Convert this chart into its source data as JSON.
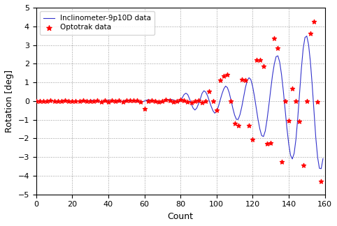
{
  "title": "",
  "xlabel": "Count",
  "ylabel": "Rotation [deg]",
  "xlim": [
    0,
    160
  ],
  "ylim": [
    -5,
    5
  ],
  "xticks": [
    0,
    20,
    40,
    60,
    80,
    100,
    120,
    140,
    160
  ],
  "yticks": [
    -5,
    -4,
    -3,
    -2,
    -1,
    0,
    1,
    2,
    3,
    4,
    5
  ],
  "line_color": "#3333cc",
  "dot_color": "#ff0000",
  "bg_color": "#ffffff",
  "legend_line_label": "Inclinometer-9p10D data",
  "legend_dot_label": "Optotrak data",
  "inclinometer_x": [
    0,
    1,
    2,
    3,
    4,
    5,
    6,
    7,
    8,
    9,
    10,
    11,
    12,
    13,
    14,
    15,
    16,
    17,
    18,
    19,
    20,
    21,
    22,
    23,
    24,
    25,
    26,
    27,
    28,
    29,
    30,
    31,
    32,
    33,
    34,
    35,
    36,
    37,
    38,
    39,
    40,
    41,
    42,
    43,
    44,
    45,
    46,
    47,
    48,
    49,
    50,
    51,
    52,
    53,
    54,
    55,
    56,
    57,
    58,
    59,
    60,
    61,
    62,
    63,
    64,
    65,
    66,
    67,
    68,
    69,
    70,
    71,
    72,
    73,
    74,
    75,
    76,
    77,
    78,
    79,
    80,
    81,
    82,
    83,
    84,
    85,
    86,
    87,
    88,
    89,
    90,
    91,
    92,
    93,
    94,
    95,
    96,
    97,
    98,
    99,
    100,
    101,
    102,
    103,
    104,
    105,
    106,
    107,
    108,
    109,
    110,
    111,
    112,
    113,
    114,
    115,
    116,
    117,
    118,
    119,
    120,
    121,
    122,
    123,
    124,
    125,
    126,
    127,
    128,
    129,
    130,
    131,
    132,
    133,
    134,
    135,
    136,
    137,
    138,
    139,
    140,
    141,
    142,
    143,
    144,
    145,
    146,
    147,
    148,
    149,
    150,
    151,
    152,
    153,
    154,
    155,
    156,
    157,
    158,
    159
  ],
  "inclinometer_y": [
    0.0,
    0.02,
    0.03,
    0.01,
    -0.02,
    -0.03,
    -0.01,
    0.02,
    0.03,
    0.01,
    -0.02,
    -0.04,
    -0.03,
    -0.01,
    0.02,
    0.03,
    0.02,
    0.01,
    -0.01,
    -0.02,
    -0.01,
    0.01,
    0.02,
    0.01,
    0.0,
    -0.01,
    -0.02,
    -0.01,
    0.01,
    0.02,
    0.03,
    0.04,
    0.02,
    0.0,
    -0.03,
    -0.05,
    -0.04,
    -0.02,
    0.01,
    0.03,
    0.05,
    0.06,
    0.04,
    0.02,
    -0.01,
    -0.03,
    -0.04,
    -0.03,
    -0.01,
    0.01,
    0.03,
    0.05,
    0.06,
    0.05,
    0.03,
    0.0,
    -0.04,
    -0.07,
    -0.06,
    -0.04,
    0.0,
    0.04,
    0.07,
    0.06,
    0.04,
    0.01,
    -0.02,
    -0.05,
    -0.08,
    -0.07,
    -0.05,
    -0.02,
    0.02,
    0.06,
    0.09,
    0.08,
    0.06,
    0.03,
    -0.01,
    -0.05,
    0.0,
    0.18,
    0.35,
    0.42,
    0.35,
    0.12,
    -0.15,
    -0.38,
    -0.48,
    -0.38,
    -0.15,
    0.12,
    0.42,
    0.55,
    0.48,
    0.28,
    0.0,
    -0.28,
    -0.52,
    -0.65,
    -0.55,
    -0.3,
    0.05,
    0.38,
    0.65,
    0.8,
    0.72,
    0.45,
    0.05,
    -0.38,
    -0.75,
    -0.98,
    -0.98,
    -0.72,
    -0.3,
    0.22,
    0.72,
    1.1,
    1.25,
    1.15,
    0.78,
    0.25,
    -0.38,
    -1.0,
    -1.5,
    -1.85,
    -1.9,
    -1.6,
    -0.98,
    -0.22,
    0.6,
    1.38,
    1.98,
    2.38,
    2.42,
    2.08,
    1.42,
    0.55,
    -0.45,
    -1.45,
    -2.3,
    -2.9,
    -3.1,
    -2.8,
    -2.05,
    -0.92,
    0.42,
    1.72,
    2.8,
    3.4,
    3.48,
    3.02,
    2.12,
    0.88,
    -0.55,
    -1.95,
    -3.0,
    -3.6,
    -3.62,
    -3.08
  ],
  "optotrak_x": [
    0,
    2,
    4,
    6,
    8,
    10,
    12,
    14,
    16,
    18,
    20,
    22,
    24,
    26,
    28,
    30,
    32,
    34,
    36,
    38,
    40,
    42,
    44,
    46,
    48,
    50,
    52,
    54,
    56,
    58,
    60,
    62,
    64,
    66,
    68,
    70,
    72,
    74,
    76,
    78,
    80,
    82,
    84,
    86,
    88,
    90,
    92,
    94,
    96,
    98,
    100,
    102,
    104,
    106,
    108,
    110,
    112,
    114,
    116,
    118,
    120,
    122,
    124,
    126,
    128,
    130,
    132,
    134,
    136,
    138,
    140,
    142,
    144,
    146,
    148,
    150,
    152,
    154,
    156,
    158
  ],
  "optotrak_y": [
    0.0,
    -0.02,
    0.01,
    -0.01,
    0.02,
    -0.02,
    0.01,
    -0.01,
    0.02,
    -0.02,
    0.01,
    0.01,
    -0.02,
    0.02,
    -0.01,
    0.01,
    -0.02,
    0.02,
    -0.03,
    0.02,
    -0.04,
    0.03,
    -0.02,
    0.02,
    -0.03,
    0.03,
    0.04,
    0.05,
    0.04,
    -0.03,
    -0.4,
    -0.02,
    0.05,
    0.01,
    -0.04,
    0.0,
    0.06,
    0.03,
    -0.05,
    0.01,
    0.08,
    0.05,
    -0.05,
    -0.07,
    0.0,
    0.04,
    -0.07,
    0.0,
    0.5,
    0.0,
    -0.5,
    1.1,
    1.35,
    1.4,
    0.0,
    -1.2,
    -1.3,
    1.15,
    1.1,
    -1.3,
    -2.05,
    2.2,
    2.2,
    1.85,
    -2.3,
    -2.25,
    3.35,
    2.85,
    -3.25,
    0.0,
    -1.05,
    0.65,
    0.0,
    -1.1,
    -3.45,
    0.0,
    3.6,
    4.25,
    -0.05,
    -4.3
  ]
}
